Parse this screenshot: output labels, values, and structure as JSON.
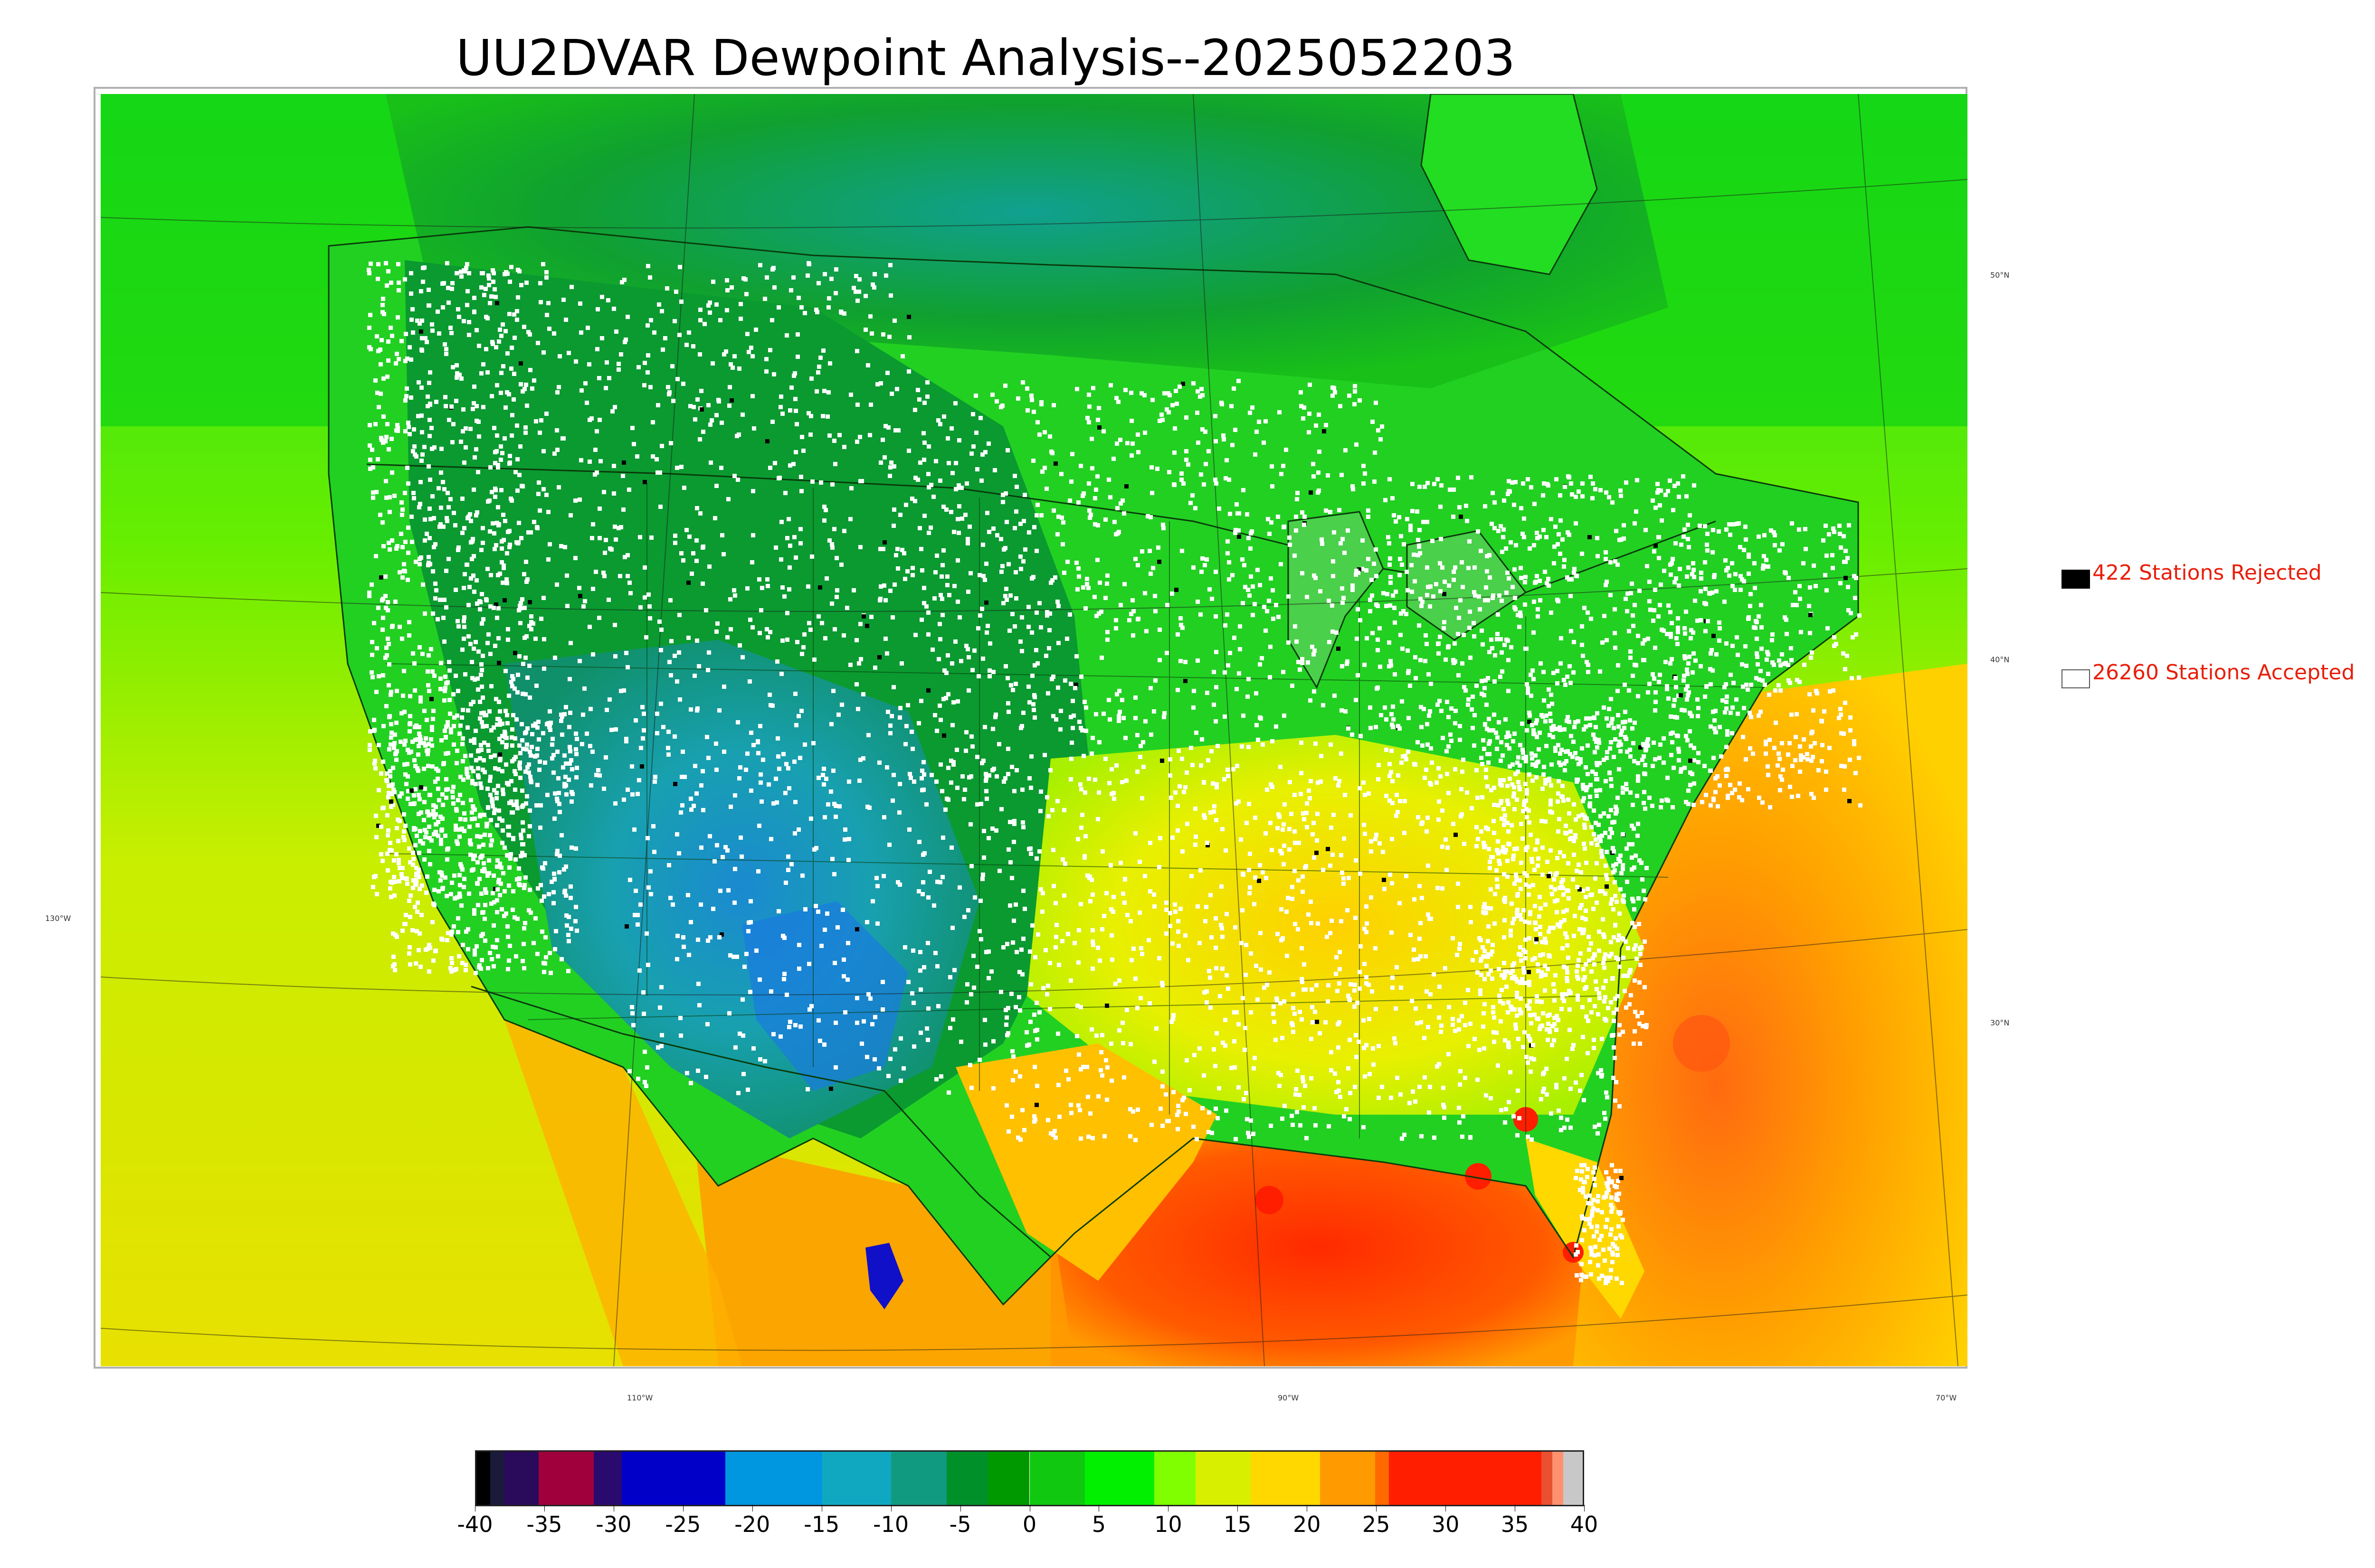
{
  "title": "UU2DVAR Dewpoint Analysis--2025052203",
  "latitude_labels": [
    "50°N",
    "40°N",
    "30°N"
  ],
  "longitude_labels": [
    "130°W",
    "110°W",
    "90°W",
    "70°W"
  ],
  "legend": {
    "rejected_label": "422 Stations Rejected",
    "accepted_label": "26260 Stations Accepted",
    "rejected_color": "#000000",
    "accepted_color": "#ffffff"
  },
  "colorbar": {
    "tick_labels": [
      "-40",
      "-35",
      "-30",
      "-25",
      "-20",
      "-15",
      "-10",
      "-5",
      "0",
      "5",
      "10",
      "15",
      "20",
      "25",
      "30",
      "35",
      "40"
    ],
    "min": -40,
    "max": 40,
    "segments": [
      {
        "from": -40,
        "to": -39,
        "color": "#000000"
      },
      {
        "from": -39,
        "to": -38,
        "color": "#1a1a3a"
      },
      {
        "from": -38,
        "to": -35.5,
        "color": "#2a0a5a"
      },
      {
        "from": -35.5,
        "to": -31.5,
        "color": "#a0003c"
      },
      {
        "from": -31.5,
        "to": -29.5,
        "color": "#2a0a6e"
      },
      {
        "from": -29.5,
        "to": -22,
        "color": "#0000c8"
      },
      {
        "from": -22,
        "to": -15,
        "color": "#0096e0"
      },
      {
        "from": -15,
        "to": -10,
        "color": "#10a8c0"
      },
      {
        "from": -10,
        "to": -6,
        "color": "#109a80"
      },
      {
        "from": -6,
        "to": -3,
        "color": "#00902a"
      },
      {
        "from": -3,
        "to": 0,
        "color": "#009900"
      },
      {
        "from": 0,
        "to": 4,
        "color": "#10c810"
      },
      {
        "from": 4,
        "to": 9,
        "color": "#00f000"
      },
      {
        "from": 9,
        "to": 12,
        "color": "#80ff00"
      },
      {
        "from": 12,
        "to": 16,
        "color": "#d8f000"
      },
      {
        "from": 16,
        "to": 21,
        "color": "#ffd800"
      },
      {
        "from": 21,
        "to": 25,
        "color": "#ff9a00"
      },
      {
        "from": 25,
        "to": 26,
        "color": "#ff6a00"
      },
      {
        "from": 26,
        "to": 37,
        "color": "#ff1e00"
      },
      {
        "from": 37,
        "to": 37.8,
        "color": "#e85030"
      },
      {
        "from": 37.8,
        "to": 38.6,
        "color": "#ff9070"
      },
      {
        "from": 38.6,
        "to": 40,
        "color": "#c8c8c8"
      }
    ]
  }
}
